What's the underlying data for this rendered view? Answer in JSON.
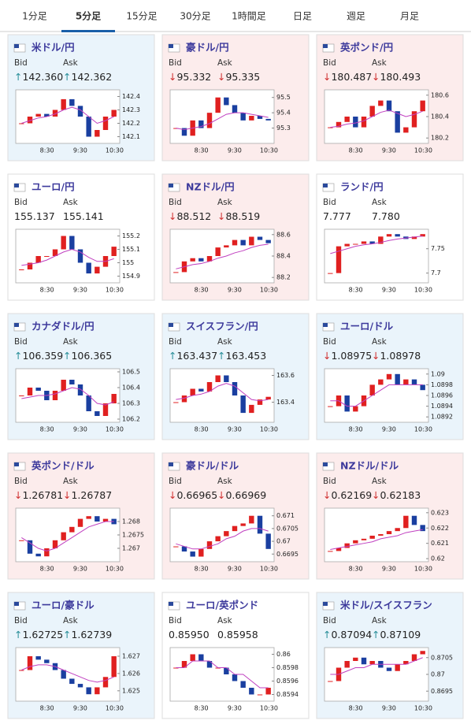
{
  "tabs": {
    "items": [
      "1分足",
      "5分足",
      "15分足",
      "30分足",
      "1時間足",
      "日足",
      "週足",
      "月足"
    ],
    "active": 1
  },
  "labels": {
    "bid": "Bid",
    "ask": "Ask"
  },
  "time_labels": [
    "8:30",
    "9:30",
    "10:30"
  ],
  "cards": [
    {
      "name": "米ドル/円",
      "bg": "#eaf4fb",
      "bid_dir": "↑",
      "bid": "142.360",
      "ask_dir": "↑",
      "ask": "142.362",
      "chart": {
        "ylim": [
          142.05,
          142.45
        ],
        "yticks": [
          142.4,
          142.3,
          142.2,
          142.1
        ],
        "close": [
          142.2,
          142.25,
          142.27,
          142.25,
          142.3,
          142.38,
          142.33,
          142.25,
          142.1,
          142.15,
          142.25,
          142.3
        ],
        "ma": [
          142.2,
          142.22,
          142.24,
          142.25,
          142.27,
          142.3,
          142.32,
          142.3,
          142.25,
          142.2,
          142.22,
          142.25
        ]
      }
    },
    {
      "name": "豪ドル/円",
      "bg": "#fcecec",
      "bid_dir": "↓",
      "bid": "95.332",
      "ask_dir": "↓",
      "ask": "95.335",
      "chart": {
        "ylim": [
          95.2,
          95.55
        ],
        "yticks": [
          95.5,
          95.4,
          95.3
        ],
        "close": [
          95.3,
          95.25,
          95.35,
          95.3,
          95.4,
          95.5,
          95.45,
          95.4,
          95.35,
          95.38,
          95.36,
          95.35
        ],
        "ma": [
          95.3,
          95.29,
          95.3,
          95.31,
          95.33,
          95.36,
          95.39,
          95.4,
          95.4,
          95.39,
          95.38,
          95.37
        ]
      }
    },
    {
      "name": "英ポンド/円",
      "bg": "#fcecec",
      "bid_dir": "↓",
      "bid": "180.487",
      "ask_dir": "↓",
      "ask": "180.493",
      "chart": {
        "ylim": [
          180.15,
          180.65
        ],
        "yticks": [
          180.6,
          180.4,
          180.2
        ],
        "close": [
          180.3,
          180.35,
          180.4,
          180.3,
          180.4,
          180.5,
          180.55,
          180.45,
          180.25,
          180.3,
          180.45,
          180.55
        ],
        "ma": [
          180.3,
          180.31,
          180.33,
          180.34,
          180.36,
          180.4,
          180.44,
          180.46,
          180.43,
          180.4,
          180.42,
          180.45
        ]
      }
    },
    {
      "name": "ユーロ/円",
      "bg": "#ffffff",
      "bid": "155.137",
      "ask": "155.141",
      "chart": {
        "ylim": [
          154.85,
          155.25
        ],
        "yticks": [
          155.2,
          155.1,
          155,
          154.9
        ],
        "close": [
          154.95,
          155.0,
          155.05,
          155.05,
          155.1,
          155.2,
          155.1,
          155.0,
          154.92,
          154.97,
          155.05,
          155.12
        ],
        "ma": [
          154.98,
          154.99,
          155.0,
          155.02,
          155.05,
          155.08,
          155.1,
          155.08,
          155.04,
          155.01,
          155.01,
          155.03
        ]
      }
    },
    {
      "name": "NZドル/円",
      "bg": "#fcecec",
      "bid_dir": "↓",
      "bid": "88.512",
      "ask_dir": "↓",
      "ask": "88.519",
      "chart": {
        "ylim": [
          88.15,
          88.65
        ],
        "yticks": [
          88.6,
          88.4,
          88.2
        ],
        "close": [
          88.25,
          88.35,
          88.38,
          88.35,
          88.4,
          88.48,
          88.5,
          88.55,
          88.5,
          88.58,
          88.55,
          88.52
        ],
        "ma": [
          88.28,
          88.3,
          88.32,
          88.33,
          88.35,
          88.38,
          88.4,
          88.43,
          88.45,
          88.48,
          88.5,
          88.51
        ]
      }
    },
    {
      "name": "ランド/円",
      "bg": "#ffffff",
      "bid": "7.777",
      "ask": "7.780",
      "chart": {
        "ylim": [
          7.68,
          7.79
        ],
        "yticks": [
          7.75,
          7.7
        ],
        "close": [
          7.7,
          7.755,
          7.76,
          7.76,
          7.765,
          7.76,
          7.775,
          7.78,
          7.775,
          7.77,
          7.775,
          7.78
        ],
        "ma": [
          7.74,
          7.745,
          7.75,
          7.755,
          7.758,
          7.76,
          7.763,
          7.767,
          7.77,
          7.772,
          7.774,
          7.776
        ]
      }
    },
    {
      "name": "カナダドル/円",
      "bg": "#eaf4fb",
      "bid_dir": "↑",
      "bid": "106.359",
      "ask_dir": "↑",
      "ask": "106.365",
      "chart": {
        "ylim": [
          106.18,
          106.52
        ],
        "yticks": [
          106.5,
          106.4,
          106.3,
          106.2
        ],
        "close": [
          106.35,
          106.4,
          106.38,
          106.32,
          106.38,
          106.45,
          106.42,
          106.35,
          106.25,
          106.22,
          106.3,
          106.36
        ],
        "ma": [
          106.33,
          106.34,
          106.35,
          106.35,
          106.36,
          106.38,
          106.4,
          106.39,
          106.35,
          106.3,
          106.29,
          106.31
        ]
      }
    },
    {
      "name": "スイスフラン/円",
      "bg": "#eaf4fb",
      "bid_dir": "↑",
      "bid": "163.437",
      "ask_dir": "↑",
      "ask": "163.453",
      "chart": {
        "ylim": [
          163.25,
          163.65
        ],
        "yticks": [
          163.6,
          163.4
        ],
        "close": [
          163.4,
          163.45,
          163.5,
          163.48,
          163.55,
          163.6,
          163.55,
          163.45,
          163.32,
          163.38,
          163.42,
          163.44
        ],
        "ma": [
          163.42,
          163.43,
          163.45,
          163.46,
          163.48,
          163.52,
          163.54,
          163.52,
          163.47,
          163.42,
          163.41,
          163.42
        ]
      }
    },
    {
      "name": "ユーロ/ドル",
      "bg": "#eaf4fb",
      "bid_dir": "↓",
      "bid": "1.08975",
      "ask_dir": "↓",
      "ask": "1.08978",
      "chart": {
        "ylim": [
          1.0891,
          1.0901
        ],
        "yticks": [
          1.09,
          1.0898,
          1.0896,
          1.0894,
          1.0892
        ],
        "close": [
          1.0894,
          1.0896,
          1.0893,
          1.0894,
          1.0896,
          1.0898,
          1.0899,
          1.09,
          1.0898,
          1.0899,
          1.0898,
          1.0897
        ],
        "ma": [
          1.0895,
          1.0895,
          1.0894,
          1.0894,
          1.0895,
          1.0896,
          1.0897,
          1.0898,
          1.0898,
          1.0898,
          1.0898,
          1.0898
        ]
      }
    },
    {
      "name": "英ポンド/ドル",
      "bg": "#fcecec",
      "bid_dir": "↓",
      "bid": "1.26781",
      "ask_dir": "↓",
      "ask": "1.26787",
      "chart": {
        "ylim": [
          1.2665,
          1.2685
        ],
        "yticks": [
          1.268,
          1.2675,
          1.267
        ],
        "close": [
          1.2673,
          1.2668,
          1.2667,
          1.267,
          1.2673,
          1.2676,
          1.2678,
          1.2681,
          1.2682,
          1.268,
          1.2681,
          1.2679
        ],
        "ma": [
          1.2674,
          1.2672,
          1.267,
          1.2669,
          1.267,
          1.2672,
          1.2674,
          1.2676,
          1.2678,
          1.2679,
          1.268,
          1.268
        ]
      }
    },
    {
      "name": "豪ドル/ドル",
      "bg": "#fcecec",
      "bid_dir": "↓",
      "bid": "0.66965",
      "ask_dir": "↓",
      "ask": "0.66969",
      "chart": {
        "ylim": [
          0.6692,
          0.6713
        ],
        "yticks": [
          0.671,
          0.6705,
          0.67,
          0.6695
        ],
        "close": [
          0.6698,
          0.6696,
          0.6694,
          0.6697,
          0.67,
          0.6702,
          0.6704,
          0.6706,
          0.6707,
          0.671,
          0.6703,
          0.6697
        ],
        "ma": [
          0.6699,
          0.6698,
          0.6697,
          0.6697,
          0.6698,
          0.6699,
          0.6701,
          0.6702,
          0.6704,
          0.6705,
          0.6705,
          0.6704
        ]
      }
    },
    {
      "name": "NZドル/ドル",
      "bg": "#fcecec",
      "bid_dir": "↓",
      "bid": "0.62169",
      "ask_dir": "↓",
      "ask": "0.62183",
      "chart": {
        "ylim": [
          0.6198,
          0.6233
        ],
        "yticks": [
          0.623,
          0.622,
          0.621,
          0.62
        ],
        "close": [
          0.6205,
          0.6207,
          0.621,
          0.6212,
          0.6213,
          0.6215,
          0.6216,
          0.6218,
          0.622,
          0.6228,
          0.6222,
          0.6218
        ],
        "ma": [
          0.6206,
          0.6207,
          0.6208,
          0.6209,
          0.621,
          0.6211,
          0.6213,
          0.6214,
          0.6215,
          0.6217,
          0.6218,
          0.6219
        ]
      }
    },
    {
      "name": "ユーロ/豪ドル",
      "bg": "#eaf4fb",
      "bid_dir": "↑",
      "bid": "1.62725",
      "ask_dir": "↑",
      "ask": "1.62739",
      "chart": {
        "ylim": [
          1.6244,
          1.6275
        ],
        "yticks": [
          1.627,
          1.626,
          1.625
        ],
        "close": [
          1.6262,
          1.627,
          1.6268,
          1.6266,
          1.6262,
          1.6257,
          1.6254,
          1.6252,
          1.6248,
          1.6252,
          1.6258,
          1.627
        ],
        "ma": [
          1.6262,
          1.6264,
          1.6265,
          1.6265,
          1.6264,
          1.6262,
          1.626,
          1.6258,
          1.6256,
          1.6255,
          1.6256,
          1.6258
        ]
      }
    },
    {
      "name": "ユーロ/英ポンド",
      "bg": "#ffffff",
      "bid": "0.85950",
      "ask": "0.85958",
      "chart": {
        "ylim": [
          0.8593,
          0.8601
        ],
        "yticks": [
          0.86,
          0.8598,
          0.8596,
          0.8594
        ],
        "close": [
          0.8598,
          0.8599,
          0.86,
          0.8599,
          0.8598,
          0.8598,
          0.8597,
          0.8596,
          0.8595,
          0.8594,
          0.8594,
          0.8595
        ],
        "ma": [
          0.8598,
          0.8598,
          0.8599,
          0.8599,
          0.8599,
          0.8598,
          0.8598,
          0.8597,
          0.8597,
          0.8596,
          0.8595,
          0.8595
        ]
      }
    },
    {
      "name": "米ドル/スイスフラン",
      "bg": "#eaf4fb",
      "bid_dir": "↑",
      "bid": "0.87094",
      "ask_dir": "↑",
      "ask": "0.87109",
      "chart": {
        "ylim": [
          0.8692,
          0.8708
        ],
        "yticks": [
          0.8705,
          0.87,
          0.8695
        ],
        "close": [
          0.8698,
          0.8702,
          0.8704,
          0.8705,
          0.8703,
          0.8704,
          0.8702,
          0.8701,
          0.8703,
          0.8704,
          0.8706,
          0.8707
        ],
        "ma": [
          0.87,
          0.87,
          0.8701,
          0.8702,
          0.8702,
          0.8703,
          0.8703,
          0.8703,
          0.8703,
          0.8703,
          0.8704,
          0.8705
        ]
      }
    }
  ]
}
